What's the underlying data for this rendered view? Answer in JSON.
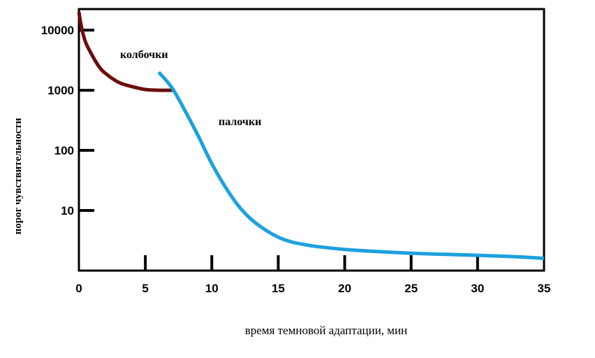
{
  "chart_data": {
    "type": "line",
    "xlabel": "время темновой адаптации, мин",
    "ylabel": "порог чувствительности",
    "xlim": [
      0,
      35
    ],
    "ylim_log10": [
      0,
      4.35
    ],
    "y_scale": "log",
    "x_ticks": [
      0,
      5,
      10,
      15,
      20,
      25,
      30,
      35
    ],
    "x_tick_labels": [
      "0",
      "5",
      "10",
      "15",
      "20",
      "25",
      "30",
      "35"
    ],
    "y_ticks": [
      10,
      100,
      1000,
      10000
    ],
    "y_tick_labels": [
      "10",
      "100",
      "1000",
      "10000"
    ],
    "grid": false,
    "series": [
      {
        "name": "колбочки",
        "color": "#6b0d0d",
        "x": [
          0,
          0.2,
          0.5,
          1,
          1.5,
          2,
          3,
          4,
          5,
          6,
          7.2
        ],
        "y": [
          20000,
          11000,
          6300,
          3800,
          2500,
          1900,
          1350,
          1150,
          1030,
          1000,
          1000
        ]
      },
      {
        "name": "палочки",
        "color": "#1ca0e0",
        "x": [
          6,
          7,
          8,
          9,
          10,
          11,
          12,
          13,
          14,
          15,
          16,
          17,
          18,
          20,
          22,
          25,
          28,
          30,
          33,
          35
        ],
        "y": [
          2000,
          1100,
          450,
          170,
          60,
          25,
          12,
          7,
          4.8,
          3.6,
          3.0,
          2.7,
          2.5,
          2.25,
          2.1,
          1.95,
          1.85,
          1.8,
          1.7,
          1.6
        ]
      }
    ]
  }
}
